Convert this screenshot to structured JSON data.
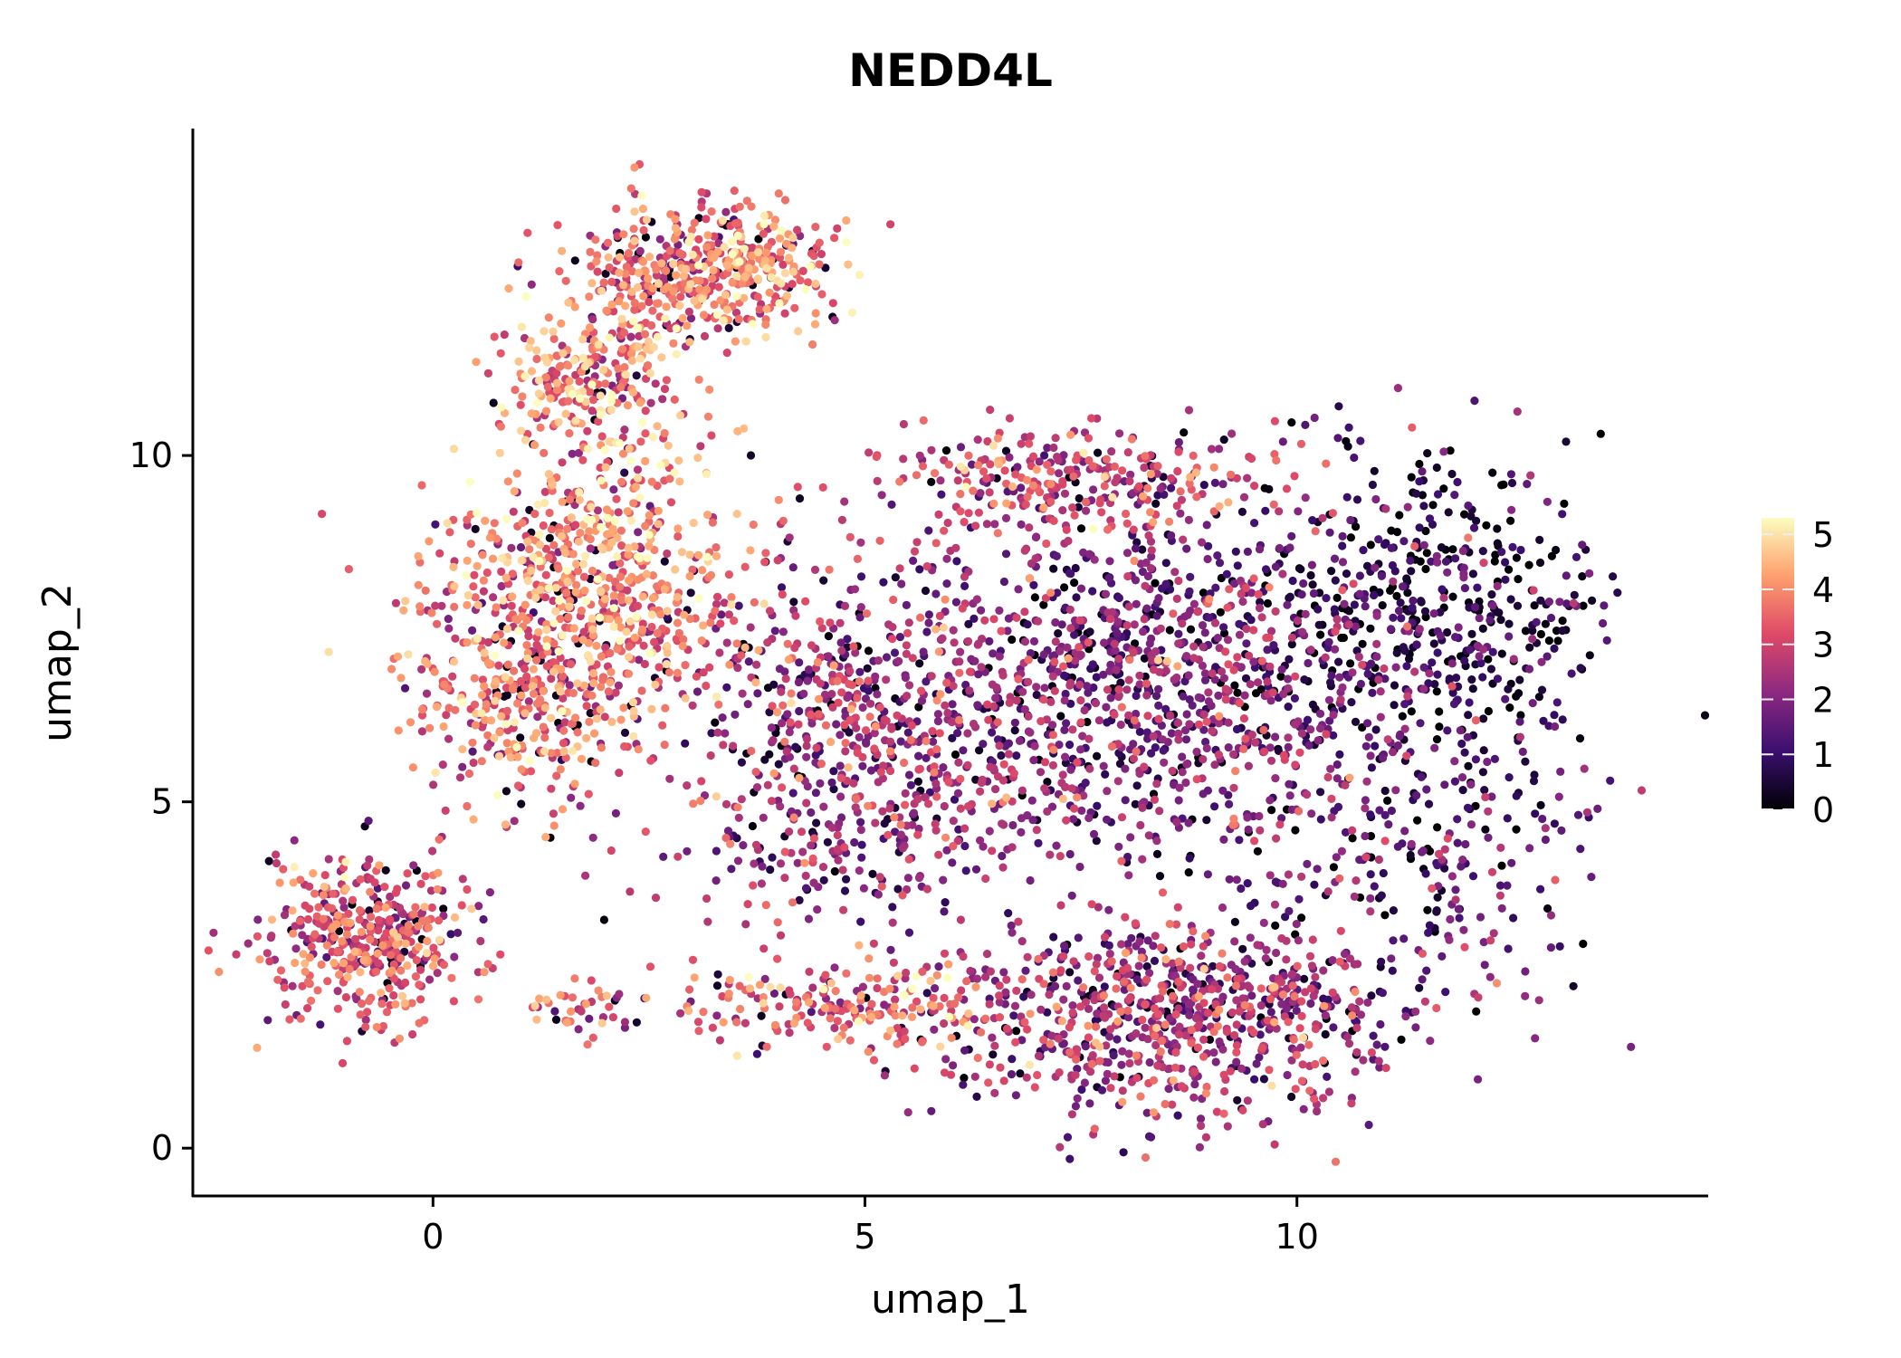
{
  "chart_data": {
    "type": "scatter",
    "title": "NEDD4L",
    "xlabel": "umap_1",
    "ylabel": "umap_2",
    "xlim": [
      -2.78,
      14.76
    ],
    "ylim": [
      -0.69,
      14.72
    ],
    "xticks": [
      0,
      5,
      10
    ],
    "xtick_labels": [
      "0",
      "5",
      "10"
    ],
    "yticks": [
      0,
      5,
      10
    ],
    "ytick_labels": [
      "0",
      "5",
      "10"
    ],
    "grid": false,
    "colorbar": {
      "range": [
        0,
        5.3
      ],
      "ticks": [
        0,
        1,
        2,
        3,
        4,
        5
      ],
      "tick_labels": [
        "0",
        "1",
        "2",
        "3",
        "4",
        "5"
      ],
      "colormap": [
        "#000004",
        "#3b0f70",
        "#8c2981",
        "#de4968",
        "#fe9f6d",
        "#fcfdbf"
      ],
      "placement": "right"
    },
    "point_groups": [
      {
        "cx": 1.8,
        "cy": 11.0,
        "sx": 0.5,
        "sy": 0.6,
        "n": 260,
        "expr": 3.6
      },
      {
        "cx": 2.7,
        "cy": 12.6,
        "sx": 0.55,
        "sy": 0.55,
        "n": 300,
        "expr": 3.5
      },
      {
        "cx": 3.9,
        "cy": 12.7,
        "sx": 0.45,
        "sy": 0.45,
        "n": 200,
        "expr": 4.0
      },
      {
        "cx": -0.8,
        "cy": 3.0,
        "sx": 0.6,
        "sy": 0.6,
        "n": 420,
        "expr": 3.1
      },
      {
        "cx": 1.8,
        "cy": 8.1,
        "sx": 0.9,
        "sy": 1.0,
        "n": 650,
        "expr": 3.8
      },
      {
        "cx": 1.0,
        "cy": 6.5,
        "sx": 0.6,
        "sy": 0.8,
        "n": 300,
        "expr": 3.4
      },
      {
        "cx": 4.9,
        "cy": 5.9,
        "sx": 1.2,
        "sy": 1.3,
        "n": 800,
        "expr": 2.3
      },
      {
        "cx": 8.5,
        "cy": 6.8,
        "sx": 1.3,
        "sy": 1.3,
        "n": 1000,
        "expr": 1.8
      },
      {
        "cx": 11.7,
        "cy": 7.8,
        "sx": 0.9,
        "sy": 1.1,
        "n": 450,
        "expr": 0.9
      },
      {
        "cx": 11.5,
        "cy": 4.2,
        "sx": 1.0,
        "sy": 1.2,
        "n": 250,
        "expr": 1.5
      },
      {
        "cx": 8.5,
        "cy": 1.9,
        "sx": 1.3,
        "sy": 0.7,
        "n": 800,
        "expr": 2.4
      },
      {
        "cx": 4.9,
        "cy": 2.05,
        "sx": 1.0,
        "sy": 0.3,
        "n": 200,
        "expr": 3.5
      },
      {
        "cx": 7.3,
        "cy": 9.6,
        "sx": 1.2,
        "sy": 0.4,
        "n": 300,
        "expr": 2.9
      },
      {
        "cx": 1.7,
        "cy": 2.0,
        "sx": 0.35,
        "sy": 0.25,
        "n": 40,
        "expr": 3.0
      }
    ]
  }
}
